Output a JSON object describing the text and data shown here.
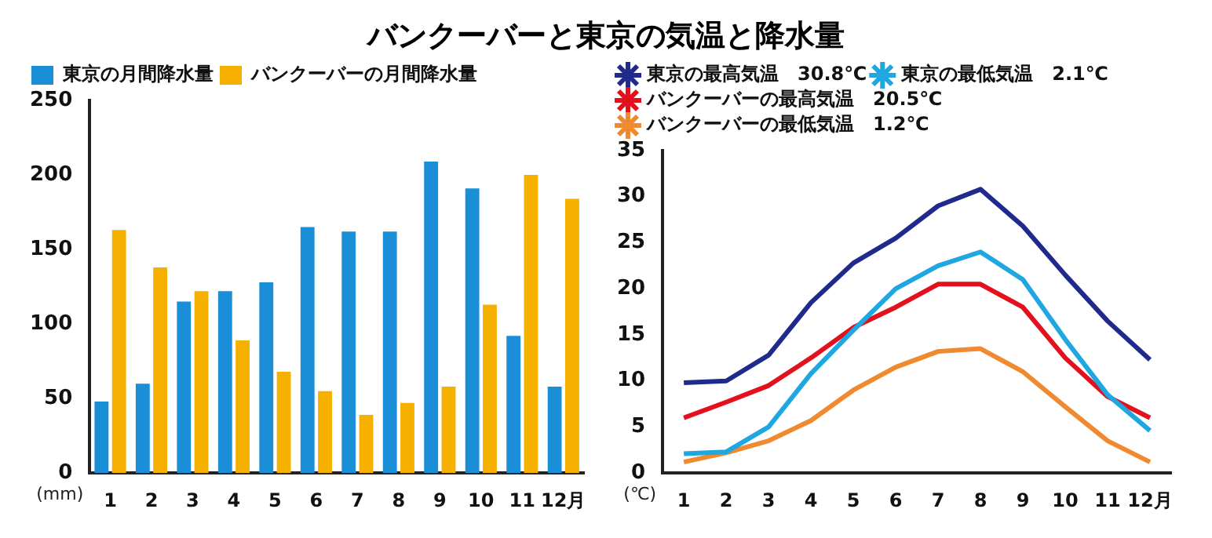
{
  "chart_data": [
    {
      "type": "bar",
      "title": "バンクーバーと東京の気温と降水量",
      "ylabel": "(mm)",
      "categories": [
        "1",
        "2",
        "3",
        "4",
        "5",
        "6",
        "7",
        "8",
        "9",
        "10",
        "11",
        "12月"
      ],
      "ylim": [
        0,
        250
      ],
      "yticks": [
        0,
        50,
        100,
        150,
        200,
        250
      ],
      "grid": false,
      "legend": "top left",
      "series": [
        {
          "name": "東京の月間降水量",
          "color": "#1a8fd8",
          "values": [
            48,
            60,
            115,
            122,
            128,
            165,
            162,
            162,
            209,
            191,
            92,
            58
          ]
        },
        {
          "name": "バンクーバーの月間降水量",
          "color": "#f5b000",
          "values": [
            163,
            138,
            122,
            89,
            68,
            55,
            39,
            47,
            58,
            113,
            200,
            184
          ]
        }
      ]
    },
    {
      "type": "line",
      "ylabel": "(℃)",
      "categories": [
        "1",
        "2",
        "3",
        "4",
        "5",
        "6",
        "7",
        "8",
        "9",
        "10",
        "11",
        "12月"
      ],
      "ylim": [
        0,
        35
      ],
      "yticks": [
        0,
        5,
        10,
        15,
        20,
        25,
        30,
        35
      ],
      "grid": false,
      "legend": "top left",
      "marker": "none",
      "line_style": "solid",
      "series": [
        {
          "name": "東京の最高気温　30.8℃",
          "color": "#1f2a8c",
          "values": [
            9.8,
            10,
            12.8,
            18.5,
            22.8,
            25.5,
            29,
            30.8,
            26.8,
            21.5,
            16.5,
            12.3
          ]
        },
        {
          "name": "東京の最低気温　2.1℃",
          "color": "#1ea7e1",
          "values": [
            2.1,
            2.3,
            5,
            10.8,
            15.5,
            20,
            22.5,
            24,
            21,
            14.5,
            8.5,
            4.6
          ]
        },
        {
          "name": "バンクーバーの最高気温　20.5℃",
          "color": "#e3101e",
          "values": [
            6,
            7.7,
            9.5,
            12.5,
            15.8,
            18,
            20.5,
            20.5,
            18,
            12.5,
            8.3,
            6
          ]
        },
        {
          "name": "バンクーバーの最低気温　1.2℃",
          "color": "#f08a30",
          "values": [
            1.2,
            2.2,
            3.5,
            5.7,
            9,
            11.5,
            13.2,
            13.5,
            11,
            7.2,
            3.5,
            1.2
          ]
        }
      ]
    }
  ]
}
